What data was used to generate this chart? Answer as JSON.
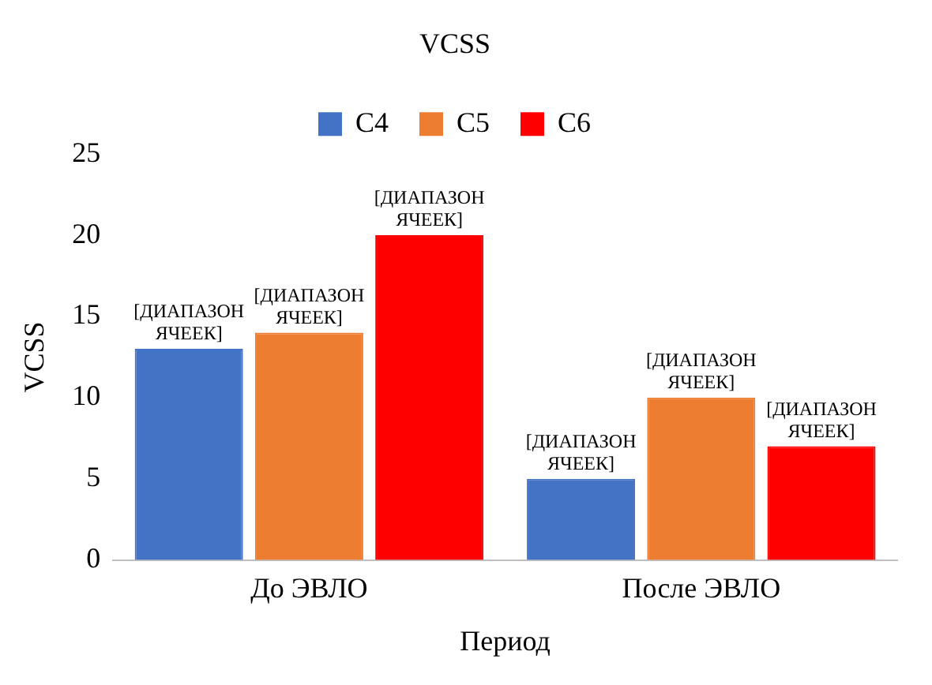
{
  "chart_data": {
    "type": "bar",
    "title": "VCSS",
    "xlabel": "Период",
    "ylabel": "VCSS",
    "categories": [
      "До ЭВЛО",
      "После ЭВЛО"
    ],
    "series": [
      {
        "name": "C4",
        "color": "#4472c4",
        "values": [
          13,
          5
        ],
        "value_labels": [
          "[ДИАПАЗОН ЯЧЕЕК]",
          "[ДИАПАЗОН ЯЧЕЕК]"
        ]
      },
      {
        "name": "C5",
        "color": "#ed7d31",
        "values": [
          14,
          10
        ],
        "value_labels": [
          "[ДИАПАЗОН ЯЧЕЕК]",
          "[ДИАПАЗОН ЯЧЕЕК]"
        ]
      },
      {
        "name": "C6",
        "color": "#ff0000",
        "values": [
          20,
          7
        ],
        "value_labels": [
          "[ДИАПАЗОН ЯЧЕЕК]",
          "[ДИАПАЗОН ЯЧЕЕК]"
        ]
      }
    ],
    "ylim": [
      0,
      25
    ],
    "yticks": [
      0,
      5,
      10,
      15,
      20,
      25
    ],
    "grid": false,
    "legend": "top"
  }
}
